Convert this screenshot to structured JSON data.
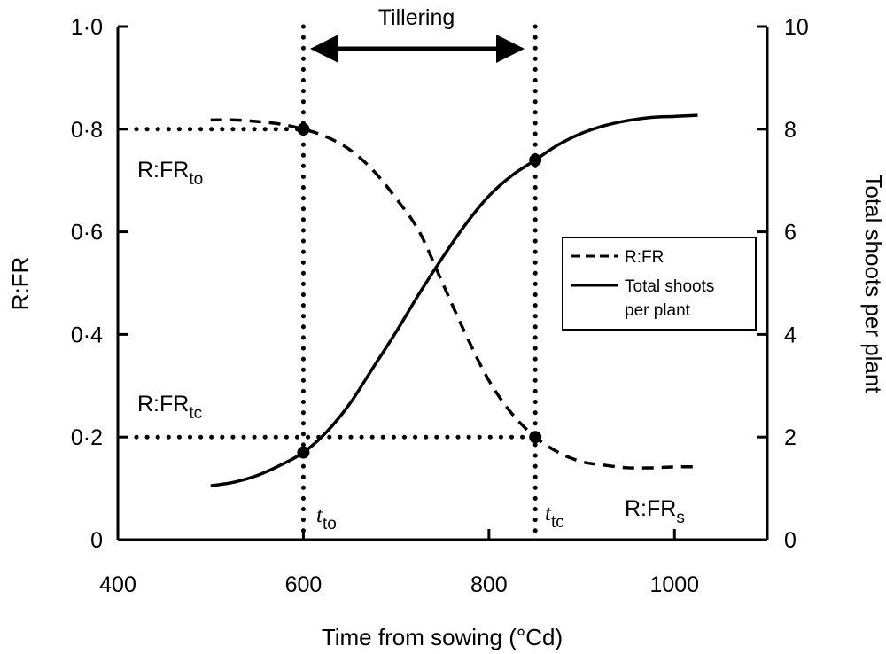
{
  "chart_data": {
    "type": "line",
    "xlabel": "Time from sowing (°Cd)",
    "ylabel_left": "R:FR",
    "ylabel_right": "Total shoots per plant",
    "xlim": [
      400,
      1100
    ],
    "ylim_left": [
      0,
      1.0
    ],
    "ylim_right": [
      0,
      10
    ],
    "x_ticks": [
      {
        "value": 400,
        "label": "400"
      },
      {
        "value": 600,
        "label": "600"
      },
      {
        "value": 800,
        "label": "800"
      },
      {
        "value": 1000,
        "label": "1000"
      }
    ],
    "y_left_ticks": [
      {
        "value": 0,
        "label": "0"
      },
      {
        "value": 0.2,
        "label": "0·2"
      },
      {
        "value": 0.4,
        "label": "0·4"
      },
      {
        "value": 0.6,
        "label": "0·6"
      },
      {
        "value": 0.8,
        "label": "0·8"
      },
      {
        "value": 1.0,
        "label": "1·0"
      }
    ],
    "y_right_ticks": [
      {
        "value": 0,
        "label": "0"
      },
      {
        "value": 2,
        "label": "2"
      },
      {
        "value": 4,
        "label": "4"
      },
      {
        "value": 6,
        "label": "6"
      },
      {
        "value": 8,
        "label": "8"
      },
      {
        "value": 10,
        "label": "10"
      }
    ],
    "series": [
      {
        "name": "R:FR",
        "axis": "left",
        "style": "dashed",
        "x": [
          500,
          525,
          550,
          575,
          600,
          625,
          650,
          675,
          700,
          725,
          750,
          775,
          800,
          825,
          850,
          875,
          900,
          925,
          950,
          975,
          1000,
          1025
        ],
        "y": [
          0.818,
          0.818,
          0.815,
          0.81,
          0.8,
          0.785,
          0.76,
          0.72,
          0.665,
          0.6,
          0.5,
          0.4,
          0.31,
          0.245,
          0.2,
          0.17,
          0.152,
          0.145,
          0.14,
          0.14,
          0.142,
          0.142
        ]
      },
      {
        "name": "Total shoots per plant",
        "axis": "right",
        "style": "solid",
        "x": [
          500,
          525,
          550,
          575,
          600,
          625,
          650,
          675,
          700,
          725,
          750,
          775,
          800,
          825,
          850,
          875,
          900,
          925,
          950,
          975,
          1000,
          1025
        ],
        "y": [
          1.05,
          1.12,
          1.25,
          1.45,
          1.7,
          2.1,
          2.65,
          3.35,
          4.05,
          4.8,
          5.5,
          6.15,
          6.7,
          7.1,
          7.4,
          7.7,
          7.92,
          8.07,
          8.17,
          8.23,
          8.25,
          8.27
        ]
      }
    ],
    "markers": [
      {
        "x": 600,
        "y": 0.8,
        "axis": "left"
      },
      {
        "x": 600,
        "y": 1.7,
        "axis": "right"
      },
      {
        "x": 850,
        "y": 7.4,
        "axis": "right"
      },
      {
        "x": 850,
        "y": 0.2,
        "axis": "left"
      }
    ],
    "reference_lines": {
      "vertical_x": [
        600,
        850
      ],
      "horizontal_left_y": [
        0.8,
        0.2
      ]
    },
    "legend": {
      "placement": "right-middle",
      "items": [
        {
          "label": "R:FR",
          "style": "dashed"
        },
        {
          "label": "Total shoots",
          "label2": "per plant",
          "style": "solid"
        }
      ]
    },
    "annotations": {
      "tillering": "Tillering",
      "rfr_to_main": "R:FR",
      "rfr_to_sub": "to",
      "rfr_tc_main": "R:FR",
      "rfr_tc_sub": "tc",
      "rfr_s_main": "R:FR",
      "rfr_s_sub": "s",
      "t_to_main": "t",
      "t_to_sub": "to",
      "t_tc_main": "t",
      "t_tc_sub": "tc"
    }
  }
}
